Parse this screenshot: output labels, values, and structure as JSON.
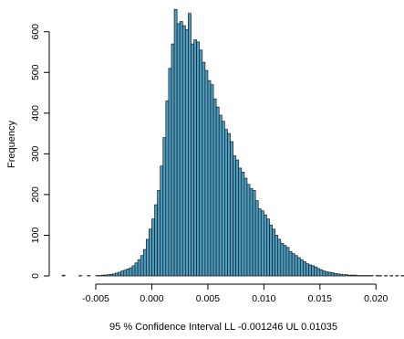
{
  "chart_data": {
    "type": "bar",
    "title": "",
    "xlabel": "95 % Confidence Interval  LL -0.001246  UL 0.01035",
    "ylabel": "Frequency",
    "bin_width": 0.00025,
    "bin_start": -0.008,
    "bar_color": "#4a9ec4",
    "bar_edge_color": "#1a1a1a",
    "xlim": [
      -0.0085,
      0.0225
    ],
    "ylim": [
      0,
      660
    ],
    "x_ticks": [
      -0.005,
      0.0,
      0.005,
      0.01,
      0.015,
      0.02
    ],
    "x_tick_labels": [
      "-0.005",
      "0.000",
      "0.005",
      "0.010",
      "0.015",
      "0.020"
    ],
    "y_ticks": [
      0,
      100,
      200,
      300,
      400,
      500,
      600
    ],
    "y_tick_labels": [
      "0",
      "100",
      "200",
      "300",
      "400",
      "500",
      "600"
    ],
    "grid": false,
    "values": [
      2,
      0,
      0,
      0,
      0,
      0,
      1,
      0,
      0,
      1,
      0,
      0,
      1,
      1,
      2,
      2,
      3,
      4,
      5,
      7,
      9,
      12,
      14,
      17,
      20,
      25,
      32,
      40,
      50,
      65,
      90,
      115,
      140,
      175,
      210,
      270,
      340,
      430,
      510,
      570,
      655,
      620,
      625,
      615,
      605,
      645,
      570,
      580,
      575,
      555,
      525,
      505,
      480,
      470,
      435,
      415,
      395,
      380,
      360,
      350,
      330,
      295,
      285,
      265,
      255,
      240,
      225,
      215,
      210,
      185,
      165,
      160,
      150,
      140,
      125,
      115,
      100,
      90,
      80,
      75,
      70,
      60,
      55,
      50,
      45,
      40,
      35,
      30,
      27,
      25,
      22,
      18,
      15,
      12,
      10,
      9,
      8,
      6,
      5,
      4,
      3,
      3,
      2,
      2,
      2,
      1,
      1,
      1,
      1,
      1,
      1,
      0,
      1,
      1,
      0,
      1,
      0,
      1,
      0,
      1,
      0,
      1
    ]
  }
}
